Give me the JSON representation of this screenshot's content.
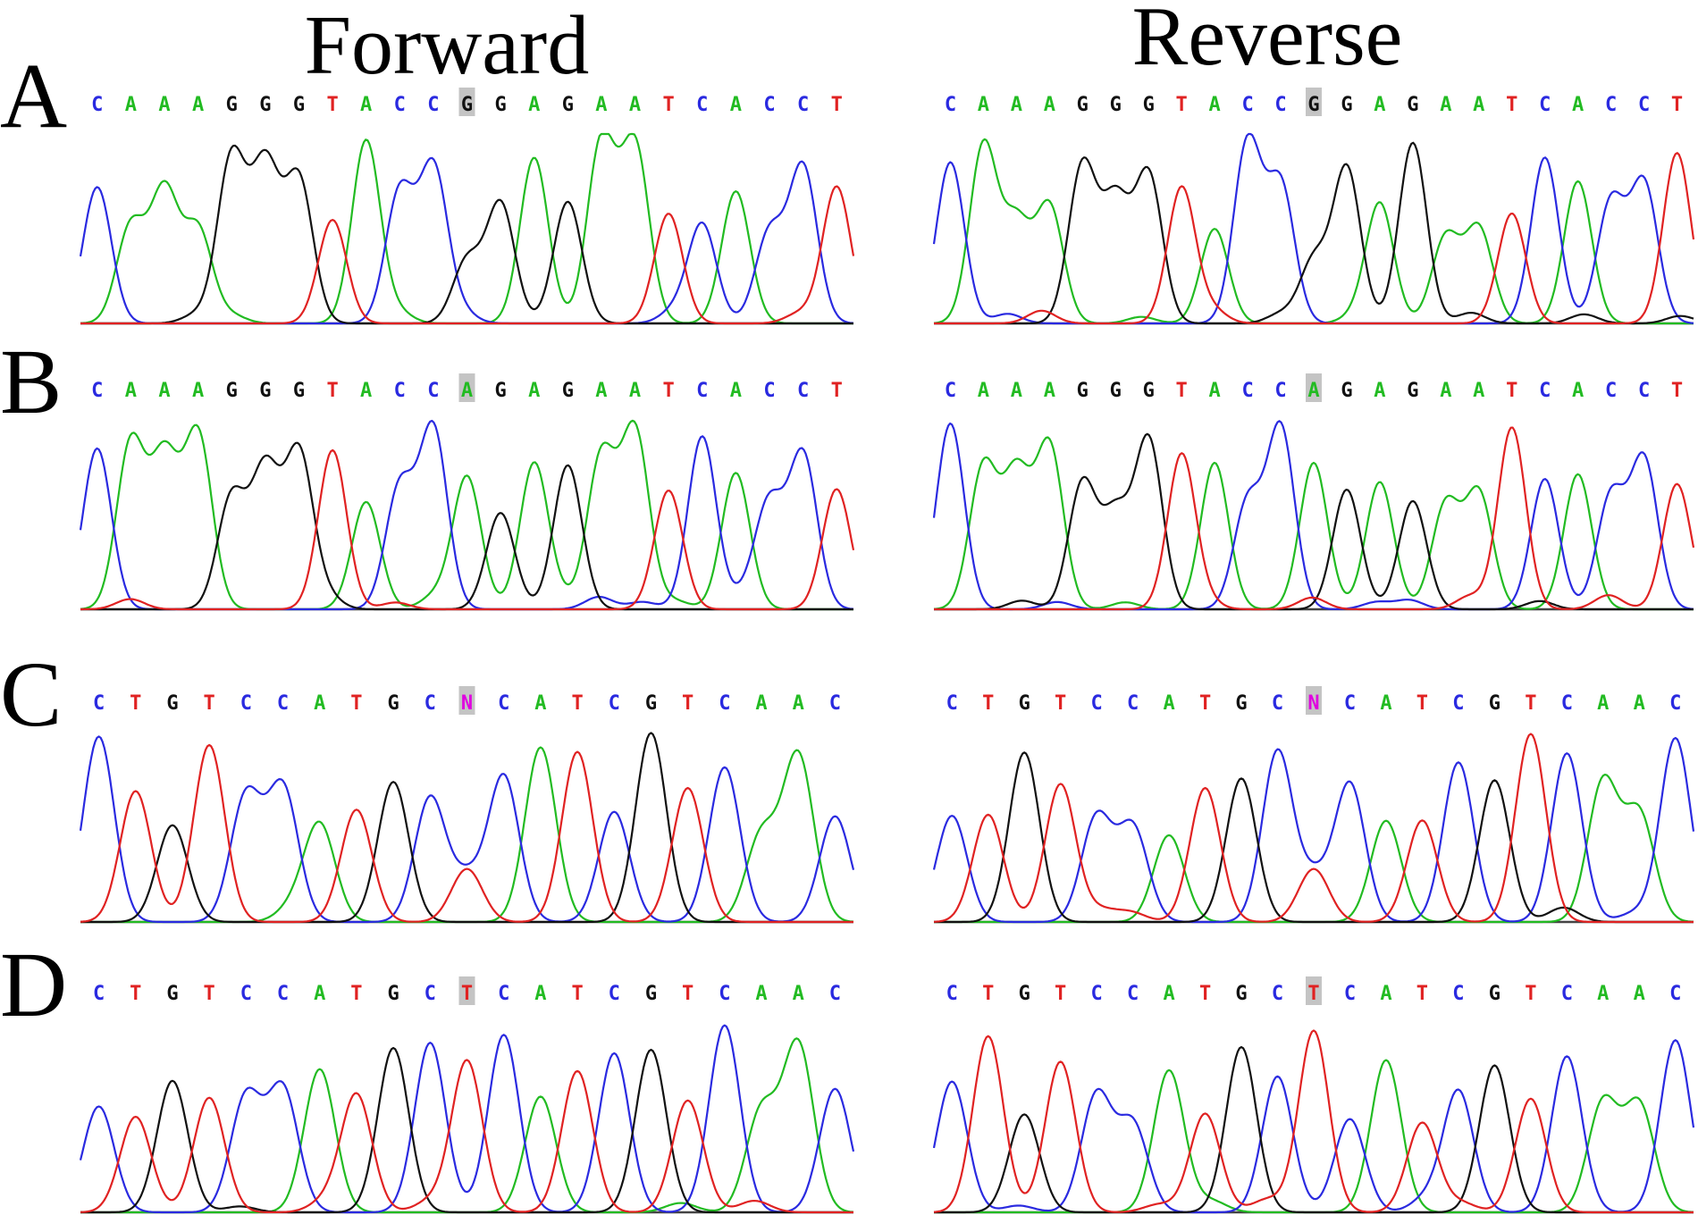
{
  "titles": {
    "forward": "Forward",
    "reverse": "Reverse"
  },
  "colors": {
    "A": "#22bb22",
    "C": "#2a2ae0",
    "G": "#111111",
    "T": "#e02222",
    "N": "#e000e0",
    "highlight": "#c4c4c4"
  },
  "rows": [
    {
      "label": "A",
      "forward": {
        "sequence": "CAAAGGGTACCGGAGAATCACCT",
        "highlight_index": 11
      },
      "reverse": {
        "sequence": "CAAAGGGTACCGGAGAATCACCT",
        "highlight_index": 11
      }
    },
    {
      "label": "B",
      "forward": {
        "sequence": "CAAAGGGTACCAGAGAATCACCT",
        "highlight_index": 11
      },
      "reverse": {
        "sequence": "CAAAGGGTACCAGAGAATCACCT",
        "highlight_index": 11
      }
    },
    {
      "label": "C",
      "forward": {
        "sequence": "CTGTCCATGCNCATCGTCAAC",
        "highlight_index": 10
      },
      "reverse": {
        "sequence": "CTGTCCATGCNCATCGTCAAC",
        "highlight_index": 10
      }
    },
    {
      "label": "D",
      "forward": {
        "sequence": "CTGTCCATGCTCATCGTCAAC",
        "highlight_index": 10
      },
      "reverse": {
        "sequence": "CTGTCCATGCTCATCGTCAAC",
        "highlight_index": 10
      }
    }
  ]
}
